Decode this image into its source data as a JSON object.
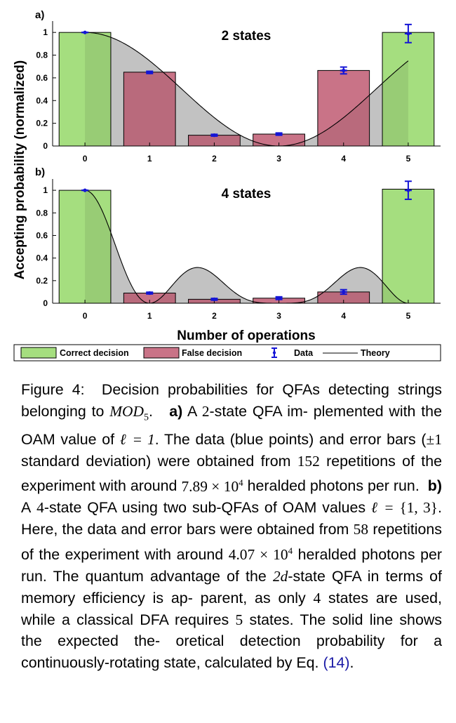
{
  "chart_data": {
    "type": "bar",
    "ylabel": "Accepting probability (normalized)",
    "xlabel": "Number of operations",
    "ylim": [
      0,
      1.1
    ],
    "yticks": [
      "0",
      "0.2",
      "0.4",
      "0.6",
      "0.8",
      "1"
    ],
    "categories": [
      "0",
      "1",
      "2",
      "3",
      "4",
      "5"
    ],
    "legend": {
      "placement": "bottom",
      "entries": [
        "Correct decision",
        "False decision",
        "Data",
        "Theory"
      ]
    },
    "colors": {
      "correct": "#a5de7f",
      "correct_dark": "#8dc46a",
      "false": "#c97387",
      "false_dark": "#b76478",
      "data": "#1515d6",
      "theory_fill": "#d3d3d3",
      "theory_line": "#000000"
    },
    "panels": [
      {
        "label": "a)",
        "title": "2 states",
        "states": 2,
        "bars": [
          1.0,
          0.65,
          0.095,
          0.105,
          0.665,
          1.0
        ],
        "decision": [
          "correct",
          "false",
          "false",
          "false",
          "false",
          "correct"
        ],
        "data": [
          1.0,
          0.648,
          0.095,
          0.105,
          0.665,
          0.99
        ],
        "error": [
          0.005,
          0.01,
          0.008,
          0.01,
          0.03,
          0.08
        ]
      },
      {
        "label": "b)",
        "title": "4 states",
        "states": 4,
        "bars": [
          1.0,
          0.09,
          0.035,
          0.045,
          0.1,
          1.01
        ],
        "decision": [
          "correct",
          "false",
          "false",
          "false",
          "false",
          "correct"
        ],
        "data": [
          1.0,
          0.09,
          0.035,
          0.045,
          0.1,
          1.0
        ],
        "error": [
          0.005,
          0.008,
          0.008,
          0.012,
          0.02,
          0.08
        ]
      }
    ]
  },
  "caption": {
    "fig_label": "Figure 4:",
    "p1": "Decision probabilities for QFAs detecting strings belonging to",
    "mod": "MOD",
    "mod_sub": "5",
    "period": ".",
    "a_label": "a)",
    "p2a": "A",
    "n2": "2",
    "p2b": "-state QFA im-",
    "p2c": "plemented with the OAM value of",
    "ell_eq_1": "ℓ = 1",
    "p3": ". The data (blue points) and error bars (",
    "pm1": "±1",
    "p4": "standard deviation) were obtained from",
    "n152": "152",
    "p5": "repetitions of the experiment with around",
    "n789": "7.89 × 10",
    "exp4a": "4",
    "p6": "heralded photons per run.",
    "b_label": "b)",
    "p7a": "A",
    "n4": "4",
    "p7b": "-state QFA using two sub-QFAs of OAM values",
    "ell_eq": "ℓ =",
    "set13": "{1, 3}",
    "p8": ". Here, the data and error bars were obtained from",
    "n58": "58",
    "p9": "repetitions of the experiment with around",
    "n407": "4.07 × 10",
    "exp4b": "4",
    "p10": "heralded photons per run. The quantum advantage of the",
    "n2d": "2d",
    "p11": "-state QFA in terms of memory efficiency is ap-",
    "p11b": "parent, as only",
    "n4b": "4",
    "p12": "states are used, while a classical DFA requires",
    "n5": "5",
    "p13": "states. The solid line shows the expected the-",
    "p13b": "oretical detection probability for a continuously-rotating state, calculated by Eq.",
    "eq_ref": "(14)",
    "p14": "."
  }
}
